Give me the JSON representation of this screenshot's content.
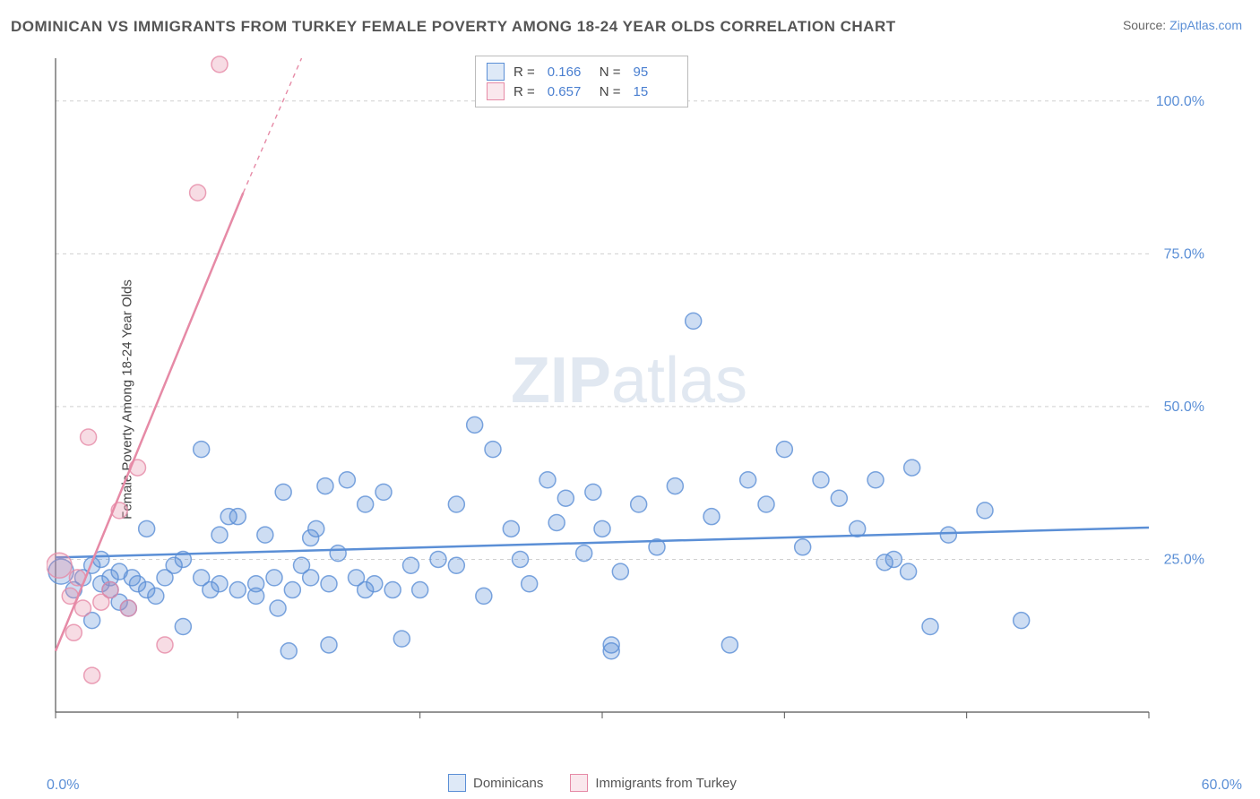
{
  "title": "DOMINICAN VS IMMIGRANTS FROM TURKEY FEMALE POVERTY AMONG 18-24 YEAR OLDS CORRELATION CHART",
  "source_prefix": "Source: ",
  "source_name": "ZipAtlas.com",
  "ylabel": "Female Poverty Among 18-24 Year Olds",
  "watermark": "ZIPatlas",
  "chart": {
    "type": "scatter",
    "xlim": [
      0,
      60
    ],
    "ylim": [
      0,
      107
    ],
    "x_ticks": [
      0,
      10,
      20,
      30,
      40,
      50,
      60
    ],
    "x_tick_labels_shown": {
      "0": "0.0%",
      "60": "60.0%"
    },
    "y_ticks": [
      25,
      50,
      75,
      100
    ],
    "y_tick_labels": [
      "25.0%",
      "50.0%",
      "75.0%",
      "100.0%"
    ],
    "background_color": "#ffffff",
    "grid_color": "#d0d0d0",
    "grid_dash": "4 4",
    "axis_color": "#555555",
    "tick_label_color": "#5b8fd6",
    "tick_label_fontsize": 16,
    "marker_radius": 9,
    "marker_radius_large": 14,
    "marker_fill_opacity": 0.3,
    "marker_stroke_opacity": 0.8,
    "marker_stroke_width": 1.5,
    "series": [
      {
        "name": "Dominicans",
        "color": "#5b8fd6",
        "R": "0.166",
        "N": "95",
        "trend": {
          "x1": 0,
          "y1": 25.3,
          "x2": 60,
          "y2": 30.2,
          "width": 2.5,
          "dash": "none"
        },
        "points": [
          [
            0.3,
            23,
            14
          ],
          [
            1,
            20
          ],
          [
            1.5,
            22
          ],
          [
            2,
            15
          ],
          [
            2,
            24
          ],
          [
            2.5,
            21
          ],
          [
            2.5,
            25
          ],
          [
            3,
            20
          ],
          [
            3,
            22
          ],
          [
            3.5,
            18
          ],
          [
            3.5,
            23
          ],
          [
            4,
            17
          ],
          [
            4.2,
            22
          ],
          [
            4.5,
            21
          ],
          [
            5,
            20
          ],
          [
            5,
            30
          ],
          [
            5.5,
            19
          ],
          [
            6,
            22
          ],
          [
            6.5,
            24
          ],
          [
            7,
            14
          ],
          [
            7,
            25
          ],
          [
            8,
            22
          ],
          [
            8,
            43
          ],
          [
            8.5,
            20
          ],
          [
            9,
            29
          ],
          [
            9,
            21
          ],
          [
            9.5,
            32
          ],
          [
            10,
            20
          ],
          [
            10,
            32
          ],
          [
            11,
            19
          ],
          [
            11,
            21
          ],
          [
            11.5,
            29
          ],
          [
            12,
            22
          ],
          [
            12.2,
            17
          ],
          [
            12.5,
            36
          ],
          [
            12.8,
            10
          ],
          [
            13,
            20
          ],
          [
            13.5,
            24
          ],
          [
            14,
            22
          ],
          [
            14,
            28.5
          ],
          [
            14.3,
            30
          ],
          [
            14.8,
            37
          ],
          [
            15,
            21
          ],
          [
            15,
            11
          ],
          [
            15.5,
            26
          ],
          [
            16,
            38
          ],
          [
            16.5,
            22
          ],
          [
            17,
            20
          ],
          [
            17,
            34
          ],
          [
            17.5,
            21
          ],
          [
            18,
            36
          ],
          [
            18.5,
            20
          ],
          [
            19,
            12
          ],
          [
            19.5,
            24
          ],
          [
            20,
            20
          ],
          [
            21,
            25
          ],
          [
            22,
            34
          ],
          [
            22,
            24
          ],
          [
            23,
            47
          ],
          [
            23.5,
            19
          ],
          [
            24,
            43
          ],
          [
            25,
            30
          ],
          [
            25.5,
            25
          ],
          [
            26,
            21
          ],
          [
            27,
            38
          ],
          [
            27.5,
            31
          ],
          [
            28,
            35
          ],
          [
            29,
            26
          ],
          [
            29.5,
            36
          ],
          [
            30,
            30
          ],
          [
            30.5,
            10
          ],
          [
            30.5,
            11
          ],
          [
            31,
            23
          ],
          [
            32,
            34
          ],
          [
            33,
            27
          ],
          [
            34,
            37
          ],
          [
            35,
            64
          ],
          [
            36,
            32
          ],
          [
            37,
            11
          ],
          [
            38,
            38
          ],
          [
            39,
            34
          ],
          [
            40,
            43
          ],
          [
            41,
            27
          ],
          [
            42,
            38
          ],
          [
            43,
            35
          ],
          [
            44,
            30
          ],
          [
            45,
            38
          ],
          [
            45.5,
            24.5
          ],
          [
            46,
            25
          ],
          [
            46.8,
            23
          ],
          [
            47,
            40
          ],
          [
            48,
            14
          ],
          [
            49,
            29
          ],
          [
            51,
            33
          ],
          [
            53,
            15
          ]
        ]
      },
      {
        "name": "Immigrants from Turkey",
        "color": "#e68aa6",
        "R": "0.657",
        "N": "15",
        "trend_solid": {
          "x1": 0,
          "y1": 10,
          "x2": 10.3,
          "y2": 85,
          "width": 2.5
        },
        "trend_dash": {
          "x1": 10.3,
          "y1": 85,
          "x2": 13.5,
          "y2": 107,
          "width": 1.4,
          "dash": "5 5"
        },
        "points": [
          [
            0.2,
            24,
            14
          ],
          [
            0.8,
            19
          ],
          [
            1,
            13
          ],
          [
            1.2,
            22
          ],
          [
            1.5,
            17
          ],
          [
            1.8,
            45
          ],
          [
            2,
            6
          ],
          [
            2.5,
            18
          ],
          [
            3,
            20
          ],
          [
            3.5,
            33
          ],
          [
            4,
            17
          ],
          [
            4.5,
            40
          ],
          [
            6,
            11
          ],
          [
            7.8,
            85
          ],
          [
            9,
            106
          ]
        ]
      }
    ]
  },
  "legend_top": {
    "border_color": "#bbbbbb",
    "rows": [
      {
        "swatch": "#5b8fd6",
        "r_label": "R  =",
        "r_val": "0.166",
        "n_label": "N  =",
        "n_val": "95"
      },
      {
        "swatch": "#e68aa6",
        "r_label": "R  =",
        "r_val": "0.657",
        "n_label": "N  =",
        "n_val": "15"
      }
    ]
  },
  "legend_bottom": {
    "items": [
      {
        "swatch": "#5b8fd6",
        "label": "Dominicans"
      },
      {
        "swatch": "#e68aa6",
        "label": "Immigrants from Turkey"
      }
    ]
  }
}
